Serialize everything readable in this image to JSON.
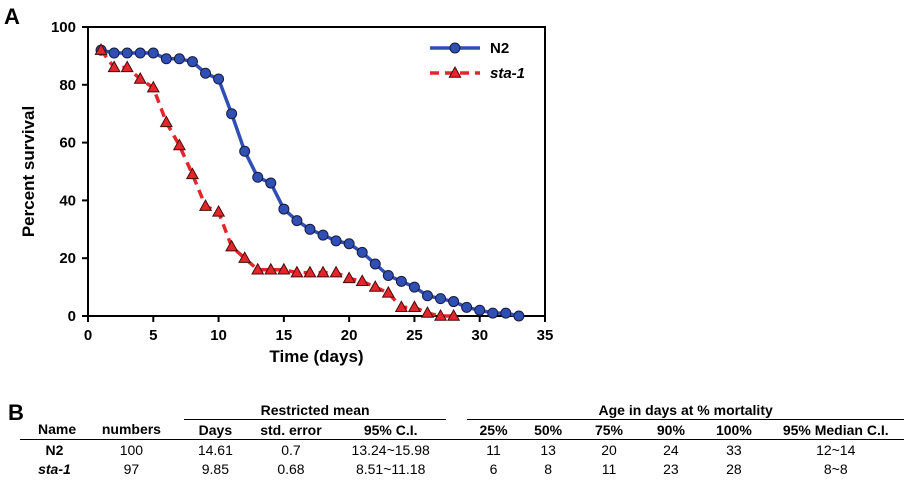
{
  "panel_a_label": "A",
  "panel_b_label": "B",
  "colors": {
    "N2": "#2f4fb5",
    "sta1": "#e3262b",
    "axis": "#000000"
  },
  "chart_data": {
    "type": "line",
    "xlabel": "Time (days)",
    "ylabel": "Percent survival",
    "xlim": [
      0,
      35
    ],
    "ylim": [
      0,
      100
    ],
    "xticks": [
      0,
      5,
      10,
      15,
      20,
      25,
      30,
      35
    ],
    "yticks": [
      0,
      20,
      40,
      60,
      80,
      100
    ],
    "legend_position": "top-right",
    "series": [
      {
        "name": "N2",
        "marker": "circle",
        "line": "solid",
        "x": [
          1,
          2,
          3,
          4,
          5,
          6,
          7,
          8,
          9,
          10,
          11,
          12,
          13,
          14,
          15,
          16,
          17,
          18,
          19,
          20,
          21,
          22,
          23,
          24,
          25,
          26,
          27,
          28,
          29,
          30,
          31,
          32,
          33
        ],
        "y": [
          92,
          91,
          91,
          91,
          91,
          89,
          89,
          88,
          84,
          82,
          70,
          57,
          48,
          46,
          37,
          33,
          30,
          28,
          26,
          25,
          22,
          18,
          14,
          12,
          10,
          7,
          6,
          5,
          3,
          2,
          1,
          1,
          0
        ]
      },
      {
        "name": "sta-1",
        "marker": "triangle",
        "line": "dashed",
        "x": [
          1,
          2,
          3,
          4,
          5,
          6,
          7,
          8,
          9,
          10,
          11,
          12,
          13,
          14,
          15,
          16,
          17,
          18,
          19,
          20,
          21,
          22,
          23,
          24,
          25,
          26,
          27,
          28
        ],
        "y": [
          92,
          86,
          86,
          82,
          79,
          67,
          59,
          49,
          38,
          36,
          24,
          20,
          16,
          16,
          16,
          15,
          15,
          15,
          15,
          13,
          12,
          10,
          8,
          3,
          3,
          1,
          0,
          0
        ]
      }
    ]
  },
  "table": {
    "group_restricted": "Restricted mean",
    "group_age": "Age in days at % mortality",
    "headers": [
      "Name",
      "numbers",
      "Days",
      "std. error",
      "95% C.I.",
      "25%",
      "50%",
      "75%",
      "90%",
      "100%",
      "95% Median C.I."
    ],
    "rows": [
      [
        "N2",
        "100",
        "14.61",
        "0.7",
        "13.24~15.98",
        "11",
        "13",
        "20",
        "24",
        "33",
        "12~14"
      ],
      [
        "sta-1",
        "97",
        "9.85",
        "0.68",
        "8.51~11.18",
        "6",
        "8",
        "11",
        "23",
        "28",
        "8~8"
      ]
    ]
  }
}
